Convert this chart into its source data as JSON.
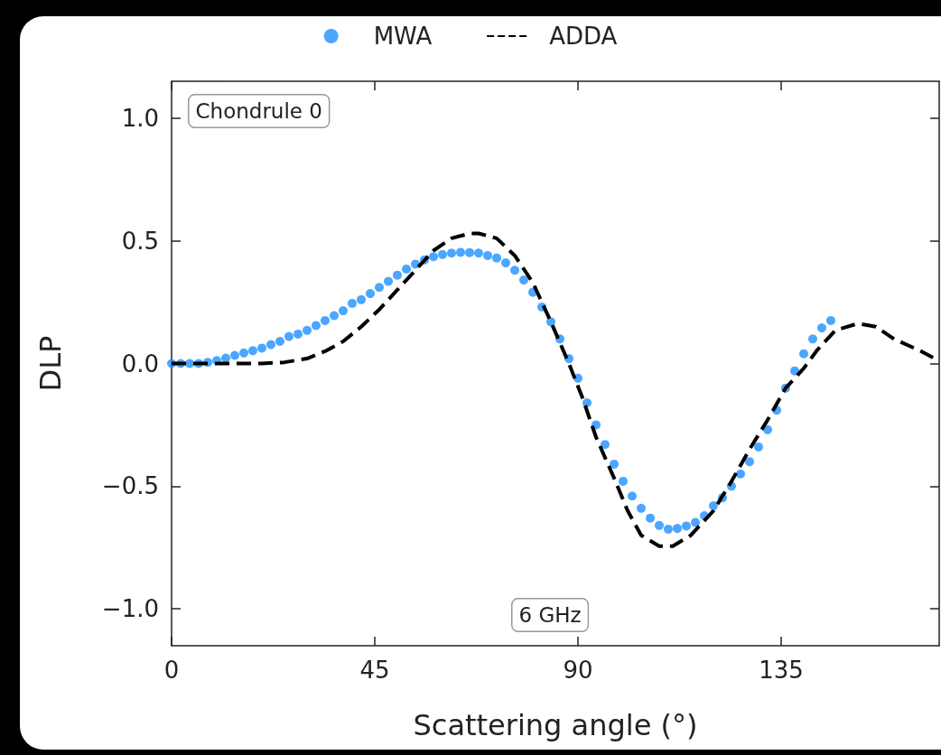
{
  "chart_data": {
    "type": "line",
    "xlabel": "Scattering angle (°)",
    "ylabel": "DLP",
    "annotations": [
      "Chondrule 0",
      "6 GHz"
    ],
    "xlim": [
      0,
      170
    ],
    "xticks": [
      0,
      45,
      90,
      135
    ],
    "ylim": [
      -1.15,
      1.15
    ],
    "yticks": [
      {
        "value": -1,
        "label": "−1.0"
      },
      {
        "value": -0.5,
        "label": "−0.5"
      },
      {
        "value": 0,
        "label": "0.0"
      },
      {
        "value": 0.5,
        "label": "0.5"
      },
      {
        "value": 1,
        "label": "1.0"
      }
    ],
    "grid": false,
    "legend": "top",
    "series": [
      {
        "name": "MWA",
        "type": "scatter",
        "marker": "circle",
        "color": "#1e90ff",
        "x": [
          0,
          2,
          4,
          6,
          8,
          10,
          12,
          14,
          16,
          18,
          20,
          22,
          24,
          26,
          28,
          30,
          32,
          34,
          36,
          38,
          40,
          42,
          44,
          46,
          48,
          50,
          52,
          54,
          56,
          58,
          60,
          62,
          64,
          66,
          68,
          70,
          72,
          74,
          76,
          78,
          80,
          82,
          84,
          86,
          88,
          90,
          92,
          94,
          96,
          98,
          100,
          102,
          104,
          106,
          108,
          110,
          112,
          114,
          116,
          118,
          120,
          122,
          124,
          126,
          128,
          130,
          132,
          134,
          136,
          138,
          140,
          142,
          144,
          146
        ],
        "values": [
          0,
          0,
          0,
          0,
          0.005,
          0.012,
          0.022,
          0.033,
          0.043,
          0.052,
          0.063,
          0.077,
          0.09,
          0.11,
          0.12,
          0.135,
          0.155,
          0.175,
          0.195,
          0.215,
          0.245,
          0.26,
          0.285,
          0.31,
          0.335,
          0.36,
          0.385,
          0.405,
          0.422,
          0.435,
          0.444,
          0.45,
          0.453,
          0.452,
          0.45,
          0.44,
          0.43,
          0.41,
          0.38,
          0.34,
          0.29,
          0.23,
          0.17,
          0.1,
          0.02,
          -0.06,
          -0.16,
          -0.25,
          -0.33,
          -0.41,
          -0.48,
          -0.54,
          -0.59,
          -0.63,
          -0.66,
          -0.675,
          -0.672,
          -0.662,
          -0.648,
          -0.62,
          -0.58,
          -0.547,
          -0.5,
          -0.45,
          -0.4,
          -0.34,
          -0.27,
          -0.19,
          -0.1,
          -0.03,
          0.04,
          0.1,
          0.145,
          0.175
        ]
      },
      {
        "name": "ADDA",
        "type": "line",
        "marker": "none",
        "line_style": "dashed",
        "color": "#000000",
        "x": [
          0,
          10,
          20,
          25,
          30,
          34,
          38,
          42,
          46,
          50,
          54,
          58,
          62,
          66,
          68,
          72,
          76,
          80,
          84,
          88,
          91,
          94,
          98,
          101,
          104,
          108,
          111,
          115,
          120,
          124,
          128,
          132,
          136,
          140,
          143,
          147,
          152,
          156,
          160,
          166,
          170
        ],
        "values": [
          0,
          0,
          0,
          0.005,
          0.02,
          0.05,
          0.09,
          0.15,
          0.22,
          0.3,
          0.38,
          0.46,
          0.51,
          0.53,
          0.53,
          0.51,
          0.44,
          0.33,
          0.17,
          0,
          -0.14,
          -0.3,
          -0.467,
          -0.6,
          -0.7,
          -0.744,
          -0.744,
          -0.7,
          -0.6,
          -0.48,
          -0.35,
          -0.23,
          -0.1,
          -0.02,
          0.055,
          0.135,
          0.163,
          0.15,
          0.1,
          0.05,
          0.01
        ]
      }
    ]
  }
}
